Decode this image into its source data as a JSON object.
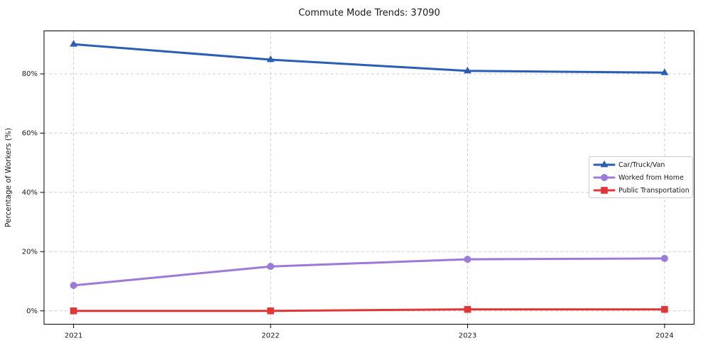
{
  "window": {
    "background": "#ffffff"
  },
  "chart_data": {
    "type": "line",
    "title": "Commute Mode Trends: 37090",
    "xlabel": "",
    "ylabel": "Percentage of Workers (%)",
    "x": [
      2021,
      2022,
      2023,
      2024
    ],
    "x_tick_labels": [
      "2021",
      "2022",
      "2023",
      "2024"
    ],
    "y_ticks": [
      0,
      20,
      40,
      60,
      80
    ],
    "y_tick_labels": [
      "0%",
      "20%",
      "40%",
      "60%",
      "80%"
    ],
    "xlim": [
      2020.85,
      2024.15
    ],
    "ylim": [
      -4.5,
      94.5
    ],
    "grid": true,
    "grid_style": "dashed",
    "legend_position": "center-right",
    "series": [
      {
        "name": "Car/Truck/Van",
        "marker": "triangle",
        "color": "#2a5db4",
        "values": [
          90.0,
          84.8,
          81.0,
          80.4
        ]
      },
      {
        "name": "Worked from Home",
        "marker": "circle",
        "color": "#9c7ad8",
        "values": [
          8.6,
          15.0,
          17.4,
          17.7
        ]
      },
      {
        "name": "Public Transportation",
        "marker": "square",
        "color": "#e23636",
        "values": [
          0.0,
          0.0,
          0.5,
          0.5
        ]
      }
    ],
    "style": {
      "grid_color": "#cdcdcd",
      "spine_color": "#000000",
      "text_color": "#1a1a1a",
      "plot_background": "#ffffff",
      "legend_border": "#cccccc",
      "legend_background": "#ffffff"
    }
  }
}
